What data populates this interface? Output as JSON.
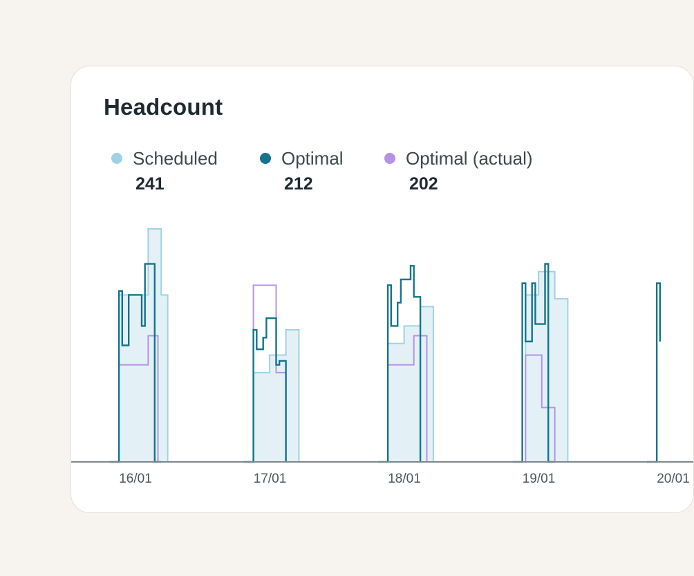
{
  "colors": {
    "scheduled": "#9fd3e3",
    "optimal": "#13748c",
    "optimal_actual": "#b691e6"
  },
  "card": {
    "title": "Headcount"
  },
  "legend": [
    {
      "key": "scheduled",
      "label": "Scheduled",
      "value": "241"
    },
    {
      "key": "optimal",
      "label": "Optimal",
      "value": "212"
    },
    {
      "key": "optimal_actual",
      "label": "Optimal (actual)",
      "value": "202"
    }
  ],
  "chart_data": {
    "type": "area",
    "title": "Headcount",
    "xlabel": "",
    "ylabel": "",
    "x_tick_labels": [
      "16/01",
      "17/01",
      "18/01",
      "19/01",
      "20/01"
    ],
    "y_range": [
      0,
      12
    ],
    "grid": false,
    "legend_position": "top-left",
    "step": "stepped",
    "series": [
      {
        "name": "Scheduled",
        "key": "scheduled",
        "segments": [
          {
            "day": "16/01",
            "breaks": [
              0,
              0.3,
              1.2,
              1.6,
              1.8
            ],
            "values": [
              0,
              8.6,
              12,
              8.6,
              0
            ]
          },
          {
            "day": "17/01",
            "breaks": [
              0,
              0.3,
              0.8,
              1.3,
              1.7
            ],
            "values": [
              0,
              4.6,
              5.5,
              6.8,
              0
            ]
          },
          {
            "day": "18/01",
            "breaks": [
              0,
              0.3,
              0.8,
              1.3,
              1.7
            ],
            "values": [
              0,
              6.1,
              7.0,
              8.0,
              0
            ]
          },
          {
            "day": "19/01",
            "breaks": [
              0,
              0.4,
              0.8,
              1.3,
              1.7
            ],
            "values": [
              0,
              8.6,
              9.8,
              8.4,
              0
            ]
          },
          {
            "day": "20/01",
            "breaks": [
              0,
              0.3
            ],
            "values": [
              0,
              8.6
            ]
          }
        ]
      },
      {
        "name": "Optimal",
        "key": "optimal",
        "segments": [
          {
            "day": "16/01",
            "breaks": [
              0,
              0.3,
              0.4,
              0.6,
              0.7,
              1.0,
              1.1,
              1.4,
              1.6
            ],
            "values": [
              0,
              8.8,
              6.0,
              8.6,
              8.6,
              7.0,
              10.2,
              0,
              0
            ]
          },
          {
            "day": "17/01",
            "breaks": [
              0,
              0.3,
              0.4,
              0.6,
              0.7,
              1.0,
              1.1,
              1.3
            ],
            "values": [
              0,
              6.8,
              5.8,
              6.4,
              7.4,
              5.0,
              5.2,
              0
            ]
          },
          {
            "day": "18/01",
            "breaks": [
              0,
              0.3,
              0.4,
              0.6,
              0.7,
              1.0,
              1.1,
              1.3
            ],
            "values": [
              0,
              9.1,
              7.0,
              8.2,
              9.4,
              10.1,
              8.5,
              0
            ]
          },
          {
            "day": "19/01",
            "breaks": [
              0,
              0.3,
              0.4,
              0.6,
              0.7,
              1.0,
              1.1,
              1.3
            ],
            "values": [
              0,
              9.2,
              6.2,
              9.2,
              7.1,
              10.2,
              0,
              0
            ]
          },
          {
            "day": "20/01",
            "breaks": [
              0,
              0.3,
              0.4
            ],
            "values": [
              0,
              9.2,
              6.2
            ]
          }
        ]
      },
      {
        "name": "Optimal (actual)",
        "key": "optimal_actual",
        "segments": [
          {
            "day": "16/01",
            "breaks": [
              0,
              0.3,
              1.2,
              1.5
            ],
            "values": [
              0,
              5.0,
              6.5,
              0
            ]
          },
          {
            "day": "17/01",
            "breaks": [
              0,
              0.3,
              1.0,
              1.3,
              1.6
            ],
            "values": [
              0,
              9.1,
              4.6,
              0,
              0
            ]
          },
          {
            "day": "18/01",
            "breaks": [
              0,
              0.3,
              1.1,
              1.5
            ],
            "values": [
              0,
              5.0,
              6.5,
              0
            ]
          },
          {
            "day": "19/01",
            "breaks": [
              0,
              0.4,
              0.9,
              1.3,
              1.5
            ],
            "values": [
              0,
              5.5,
              2.8,
              0,
              0
            ]
          },
          {
            "day": "20/01",
            "breaks": [
              0,
              0.3
            ],
            "values": [
              0,
              5.0
            ]
          }
        ]
      }
    ]
  }
}
